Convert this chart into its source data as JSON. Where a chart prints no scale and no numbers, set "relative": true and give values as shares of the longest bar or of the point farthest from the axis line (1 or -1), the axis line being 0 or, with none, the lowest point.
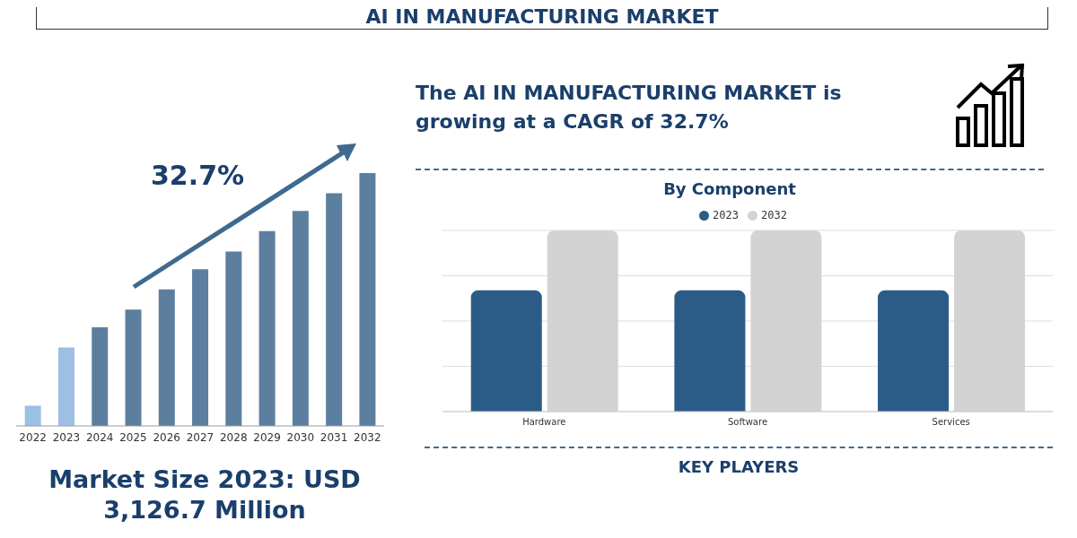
{
  "chart_data": [
    {
      "type": "bar",
      "title": "AI IN MANUFACTURING MARKET",
      "relative": true,
      "categories": [
        "2022",
        "2023",
        "2024",
        "2025",
        "2026",
        "2027",
        "2028",
        "2029",
        "2030",
        "2031",
        "2032"
      ],
      "values": [
        0.08,
        0.31,
        0.39,
        0.46,
        0.54,
        0.62,
        0.69,
        0.77,
        0.85,
        0.92,
        1
      ],
      "colors": [
        "#9dbfe3",
        "#9dbfe3",
        "#5d7f9f",
        "#5d7f9f",
        "#5d7f9f",
        "#5d7f9f",
        "#5d7f9f",
        "#5d7f9f",
        "#5d7f9f",
        "#5d7f9f",
        "#5d7f9f"
      ],
      "annotations": [
        "32.7%",
        "Market Size 2023: USD 3,126.7 Million"
      ]
    },
    {
      "type": "bar",
      "title": "By Component",
      "relative": true,
      "grid": "y",
      "legend": "top",
      "categories": [
        "Hardware",
        "Software",
        "Services"
      ],
      "series": [
        {
          "name": "2023",
          "color": "#2b5b87",
          "values": [
            0.67,
            0.67,
            0.67
          ]
        },
        {
          "name": "2032",
          "color": "#d3d3d3",
          "values": [
            1,
            1,
            1
          ]
        }
      ],
      "annotations": [
        "The AI IN MANUFACTURING MARKET is growing at a CAGR of 32.7%",
        "KEY PLAYERS"
      ]
    }
  ]
}
